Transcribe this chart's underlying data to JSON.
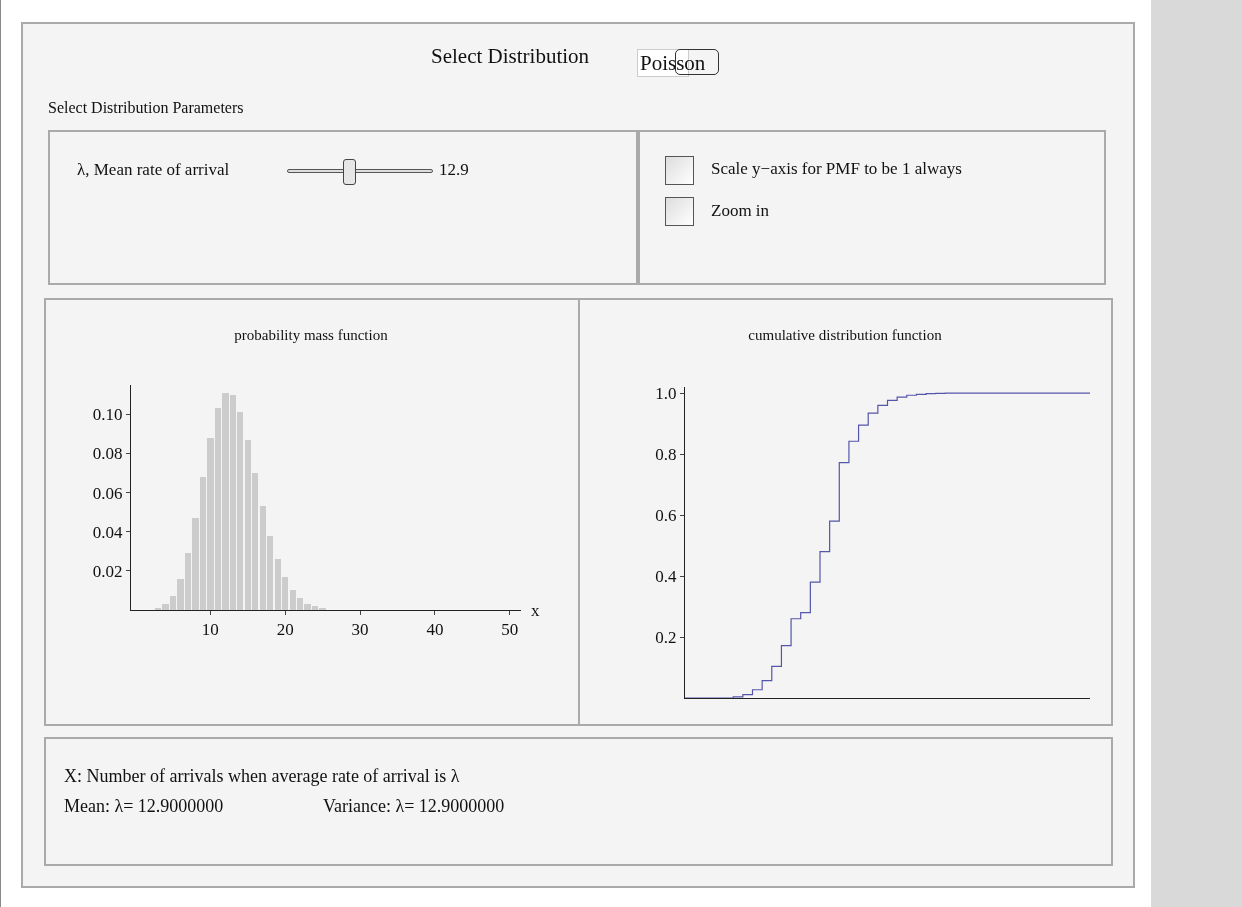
{
  "chart_data": [
    {
      "type": "other",
      "title": "Select Distribution",
      "annotations": [
        "Poisson",
        "Select Distribution Parameters",
        "λ, Mean rate of arrival",
        "12.9",
        "Scale y−axis for PMF to be 1 always",
        "Zoom in"
      ]
    },
    {
      "type": "bar",
      "title": "probability mass function",
      "xlabel": "x",
      "x": [
        0,
        1,
        2,
        3,
        4,
        5,
        6,
        7,
        8,
        9,
        10,
        11,
        12,
        13,
        14,
        15,
        16,
        17,
        18,
        19,
        20,
        21,
        22,
        23,
        24,
        25,
        26,
        27,
        28
      ],
      "values": [
        0,
        0,
        0,
        0.001,
        0.003,
        0.007,
        0.016,
        0.029,
        0.047,
        0.068,
        0.088,
        0.103,
        0.111,
        0.11,
        0.101,
        0.087,
        0.07,
        0.053,
        0.038,
        0.026,
        0.017,
        0.01,
        0.006,
        0.003,
        0.002,
        0.001,
        0,
        0,
        0
      ],
      "color": "#cccccc",
      "xlim": [
        -0.6,
        51.5
      ],
      "xticks": [
        10,
        20,
        30,
        40,
        50
      ],
      "ylim": [
        0,
        0.115
      ],
      "yticks": [
        {
          "value": 0.02,
          "label": "0.02"
        },
        {
          "value": 0.04,
          "label": "0.04"
        },
        {
          "value": 0.06,
          "label": "0.06"
        },
        {
          "value": 0.08,
          "label": "0.08"
        },
        {
          "value": 0.1,
          "label": "0.10"
        }
      ],
      "grid": false,
      "legend": false
    },
    {
      "type": "step",
      "title": "cumulative distribution function",
      "categories": [
        null,
        null,
        null,
        null,
        null,
        null,
        null,
        null,
        null,
        null,
        null,
        null,
        null,
        null,
        null,
        null,
        null,
        null,
        null,
        null,
        null,
        null,
        null,
        null,
        null,
        null,
        null,
        null,
        null,
        null,
        null,
        null,
        null,
        null,
        null,
        null,
        null,
        null,
        null,
        null,
        null,
        null,
        null
      ],
      "series": [
        {
          "color": "#5555aa",
          "values": [
            0,
            0,
            0,
            0,
            0,
            0.004,
            0.011,
            0.027,
            0.057,
            0.104,
            0.172,
            0.26,
            0.28,
            0.38,
            0.48,
            0.58,
            0.772,
            0.842,
            0.895,
            0.934,
            0.96,
            0.976,
            0.987,
            0.993,
            0.996,
            0.998,
            0.999,
            1,
            1,
            1,
            1,
            1,
            1,
            1,
            1,
            1,
            1,
            1,
            1,
            1,
            1,
            1,
            1
          ]
        }
      ],
      "ylim": [
        0,
        1.02
      ],
      "yticks": [
        0.2,
        0.4,
        0.6,
        0.8,
        {
          "value": 1,
          "label": "1.0"
        }
      ],
      "tick_labels": "y",
      "grid": false,
      "legend": false,
      "line_style": "solid"
    },
    {
      "type": "other",
      "annotations": [
        "X: Number of arrivals when average rate of arrival is λ",
        "Mean: λ= 12.9000000",
        "Variance: λ= 12.9000000"
      ]
    }
  ]
}
